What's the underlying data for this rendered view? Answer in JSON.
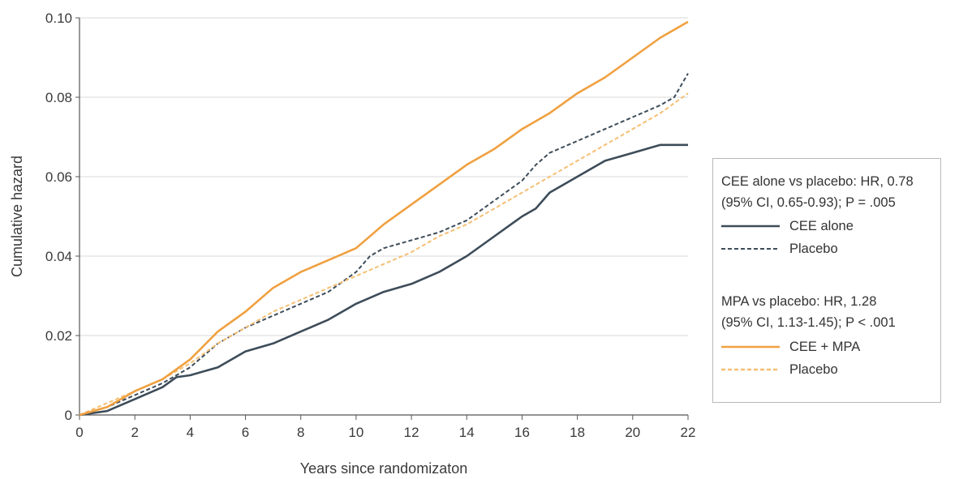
{
  "chart_data": {
    "type": "line",
    "title": "",
    "xlabel": "Years since randomizaton",
    "ylabel": "Cumulative hazard",
    "xlim": [
      0,
      22
    ],
    "ylim": [
      0,
      0.1
    ],
    "x_ticks": [
      0,
      2,
      4,
      6,
      8,
      10,
      12,
      14,
      16,
      18,
      20,
      22
    ],
    "x_tick_labels": [
      "0",
      "2",
      "4",
      "6",
      "8",
      "10",
      "12",
      "14",
      "16",
      "18",
      "20",
      "22"
    ],
    "y_ticks": [
      0,
      0.02,
      0.04,
      0.06,
      0.08,
      0.1
    ],
    "y_tick_labels": [
      "0",
      "0.02",
      "0.04",
      "0.06",
      "0.08",
      "0.10"
    ],
    "grid": "horizontal",
    "legend_position": "right",
    "legend_groups": [
      {
        "header": [
          "CEE alone vs placebo: HR, 0.78",
          "(95% CI, 0.65-0.93); P = .005"
        ],
        "entries": [
          "CEE alone",
          "Placebo"
        ]
      },
      {
        "header": [
          "MPA vs placebo: HR, 1.28",
          "(95% CI, 1.13-1.45); P < .001"
        ],
        "entries": [
          "CEE + MPA",
          "Placebo"
        ]
      }
    ],
    "series": [
      {
        "name": "CEE alone",
        "color": "#3d4c59",
        "dash": "solid",
        "x": [
          0,
          1,
          2,
          3,
          3.5,
          4,
          5,
          6,
          7,
          8,
          9,
          10,
          11,
          12,
          13,
          14,
          15,
          16,
          16.5,
          17,
          18,
          19,
          20,
          21,
          22
        ],
        "y": [
          0,
          0.001,
          0.004,
          0.007,
          0.0095,
          0.01,
          0.012,
          0.016,
          0.018,
          0.021,
          0.024,
          0.028,
          0.031,
          0.033,
          0.036,
          0.04,
          0.045,
          0.05,
          0.052,
          0.056,
          0.06,
          0.064,
          0.066,
          0.068,
          0.068
        ]
      },
      {
        "name": "Placebo",
        "color": "#3d4c59",
        "dash": "dashed",
        "x": [
          0,
          1,
          2,
          3,
          4,
          5,
          6,
          7,
          8,
          9,
          10,
          10.5,
          11,
          12,
          13,
          14,
          15,
          16,
          16.5,
          17,
          18,
          19,
          20,
          21,
          21.5,
          22
        ],
        "y": [
          0,
          0.002,
          0.005,
          0.008,
          0.012,
          0.018,
          0.022,
          0.025,
          0.028,
          0.031,
          0.036,
          0.04,
          0.042,
          0.044,
          0.046,
          0.049,
          0.054,
          0.059,
          0.063,
          0.066,
          0.069,
          0.072,
          0.075,
          0.078,
          0.08,
          0.086
        ]
      },
      {
        "name": "CEE + MPA",
        "color": "#f0a040",
        "dash": "solid",
        "x": [
          0,
          1,
          2,
          3,
          4,
          5,
          6,
          7,
          8,
          9,
          10,
          11,
          12,
          13,
          14,
          15,
          16,
          17,
          18,
          19,
          20,
          21,
          22
        ],
        "y": [
          0,
          0.002,
          0.006,
          0.009,
          0.014,
          0.021,
          0.026,
          0.032,
          0.036,
          0.039,
          0.042,
          0.048,
          0.053,
          0.058,
          0.063,
          0.067,
          0.072,
          0.076,
          0.081,
          0.085,
          0.09,
          0.095,
          0.099
        ]
      },
      {
        "name": "Placebo",
        "color": "#f5bf73",
        "dash": "dashed",
        "x": [
          0,
          1,
          2,
          3,
          4,
          5,
          6,
          7,
          8,
          9,
          10,
          11,
          12,
          13,
          14,
          15,
          16,
          17,
          18,
          19,
          20,
          21,
          22
        ],
        "y": [
          0,
          0.003,
          0.006,
          0.009,
          0.013,
          0.018,
          0.022,
          0.026,
          0.029,
          0.032,
          0.035,
          0.038,
          0.041,
          0.045,
          0.048,
          0.052,
          0.056,
          0.06,
          0.064,
          0.068,
          0.072,
          0.076,
          0.081
        ]
      }
    ]
  }
}
